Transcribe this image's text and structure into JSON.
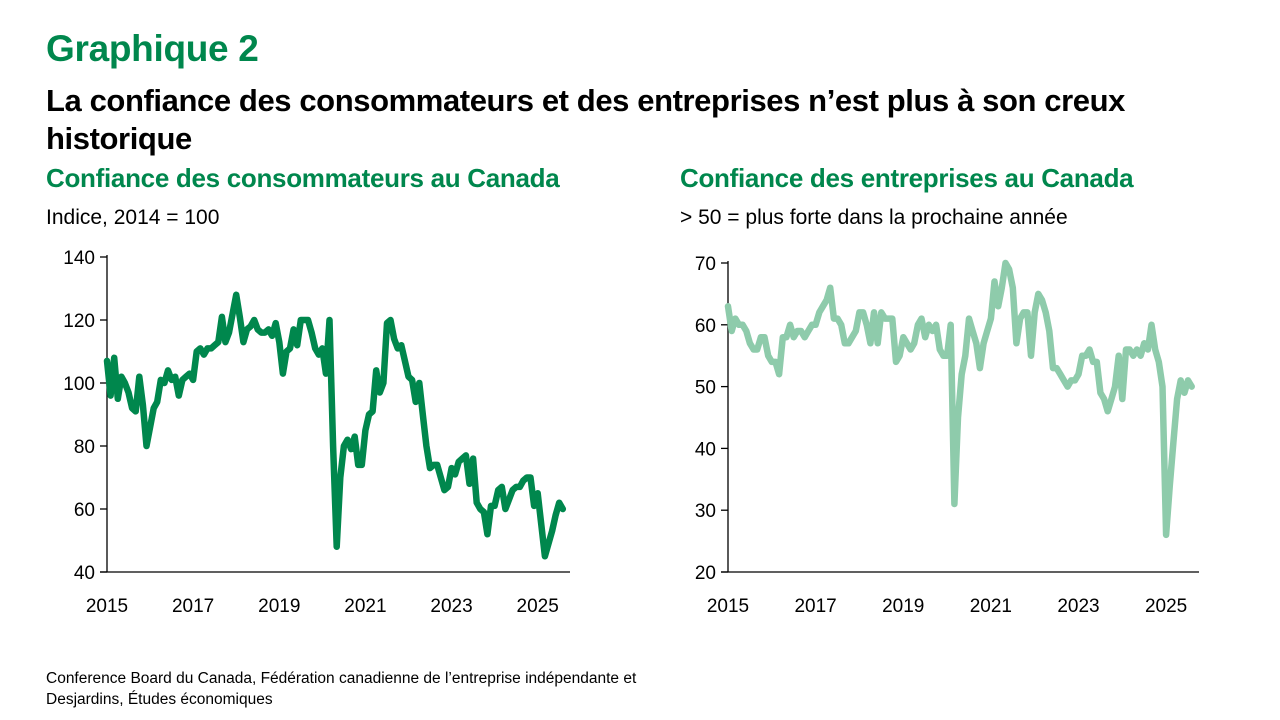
{
  "header": {
    "figure_label": "Graphique 2",
    "title": "La confiance des consommateurs et des entreprises n’est plus à son creux historique"
  },
  "source": {
    "line1": "Conference Board du Canada, Fédération canadienne de l’entreprise indépendante et",
    "line2": "Desjardins, Études économiques"
  },
  "chart_data": [
    {
      "type": "line",
      "title": "Confiance des consommateurs au Canada",
      "subtitle": "Indice, 2014 = 100",
      "xlabel": "",
      "ylabel": "",
      "frequency": "monthly",
      "x_start": "2015-01",
      "xlim": [
        2015,
        2025.75
      ],
      "x_ticks": [
        "2015",
        "2017",
        "2019",
        "2021",
        "2023",
        "2025"
      ],
      "ylim": [
        40,
        140
      ],
      "y_ticks": [
        "40",
        "60",
        "80",
        "100",
        "120",
        "140"
      ],
      "grid": false,
      "legend": "none",
      "color": "#00874d",
      "series": [
        {
          "name": "Confiance des consommateurs",
          "values": [
            107,
            96,
            108,
            95,
            102,
            100,
            97,
            92,
            91,
            102,
            93,
            80,
            86,
            92,
            94,
            101,
            100,
            104,
            101,
            102,
            96,
            101,
            102,
            103,
            101,
            110,
            111,
            109,
            111,
            111,
            112,
            113,
            121,
            113,
            116,
            122,
            128,
            121,
            113,
            117,
            118,
            120,
            117,
            116,
            116,
            117,
            115,
            119,
            113,
            103,
            110,
            111,
            117,
            112,
            120,
            120,
            120,
            116,
            111,
            109,
            111,
            103,
            120,
            80,
            48,
            70,
            80,
            82,
            79,
            83,
            74,
            74,
            85,
            90,
            91,
            104,
            97,
            100,
            119,
            120,
            114,
            111,
            112,
            107,
            102,
            101,
            94,
            100,
            90,
            80,
            73,
            74,
            74,
            70,
            66,
            67,
            73,
            71,
            75,
            76,
            77,
            68,
            76,
            62,
            60,
            59,
            52,
            61,
            61,
            66,
            67,
            60,
            63,
            66,
            67,
            67,
            69,
            70,
            70,
            61,
            65,
            55,
            45,
            49,
            53,
            58,
            62,
            60
          ]
        }
      ]
    },
    {
      "type": "line",
      "title": "Confiance des entreprises au Canada",
      "subtitle": "> 50 = plus forte dans la prochaine année",
      "xlabel": "",
      "ylabel": "",
      "frequency": "monthly",
      "x_start": "2015-01",
      "xlim": [
        2015,
        2025.75
      ],
      "x_ticks": [
        "2015",
        "2017",
        "2019",
        "2021",
        "2023",
        "2025"
      ],
      "ylim": [
        20,
        70
      ],
      "y_ticks": [
        "20",
        "30",
        "40",
        "50",
        "60",
        "70"
      ],
      "grid": false,
      "legend": "none",
      "color": "#8ecbab",
      "series": [
        {
          "name": "Confiance des entreprises",
          "values": [
            63,
            59,
            61,
            60,
            60,
            59,
            57,
            56,
            56,
            58,
            58,
            55,
            54,
            54,
            52,
            58,
            58,
            60,
            58,
            59,
            59,
            58,
            59,
            60,
            60,
            62,
            63,
            64,
            66,
            61,
            61,
            60,
            57,
            57,
            58,
            59,
            62,
            62,
            60,
            57,
            62,
            57,
            62,
            61,
            61,
            61,
            54,
            55,
            58,
            57,
            56,
            57,
            60,
            61,
            58,
            60,
            59,
            60,
            56,
            55,
            55,
            60,
            31,
            45,
            52,
            55,
            61,
            59,
            57,
            53,
            57,
            59,
            61,
            67,
            63,
            66,
            70,
            69,
            66,
            57,
            61,
            62,
            62,
            55,
            62,
            65,
            64,
            62,
            59,
            53,
            53,
            52,
            51,
            50,
            51,
            51,
            52,
            55,
            55,
            56,
            54,
            54,
            49,
            48,
            46,
            48,
            50,
            55,
            48,
            56,
            56,
            55,
            56,
            55,
            57,
            56,
            60,
            56,
            54,
            50,
            26,
            34,
            41,
            48,
            51,
            49,
            51,
            50
          ]
        }
      ]
    }
  ]
}
